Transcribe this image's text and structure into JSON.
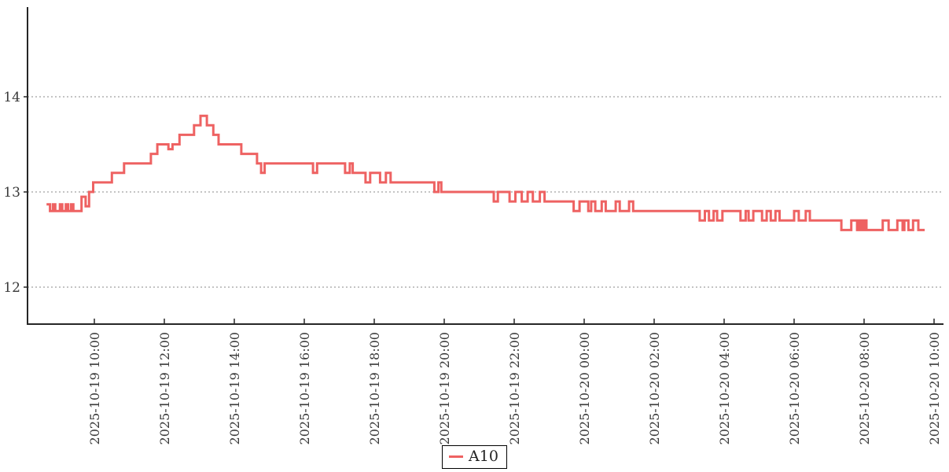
{
  "chart_data": {
    "type": "line",
    "step": "step-after",
    "title": "",
    "xlabel": "",
    "ylabel": "",
    "grid": "horizontal-dotted",
    "legend_position": "bottom-center",
    "x_unit": "minutes since 2025-10-19 00:00",
    "xlim_minutes": [
      485,
      2055
    ],
    "ylim": [
      11.6,
      14.95
    ],
    "y_ticks": [
      12,
      13,
      14
    ],
    "x_ticks": {
      "t_minutes": [
        600,
        720,
        840,
        960,
        1080,
        1200,
        1320,
        1440,
        1560,
        1680,
        1800,
        1920,
        2040
      ],
      "labels": [
        "2025-10-19 10:00",
        "2025-10-19 12:00",
        "2025-10-19 14:00",
        "2025-10-19 16:00",
        "2025-10-19 18:00",
        "2025-10-19 20:00",
        "2025-10-19 22:00",
        "2025-10-20 00:00",
        "2025-10-20 02:00",
        "2025-10-20 04:00",
        "2025-10-20 06:00",
        "2025-10-20 08:00",
        "2025-10-20 10:00"
      ]
    },
    "series": [
      {
        "name": "A10",
        "color": "#ee6262",
        "points": [
          [
            518,
            12.87
          ],
          [
            524,
            12.8
          ],
          [
            529,
            12.87
          ],
          [
            533,
            12.8
          ],
          [
            541,
            12.87
          ],
          [
            545,
            12.8
          ],
          [
            551,
            12.87
          ],
          [
            555,
            12.8
          ],
          [
            560,
            12.87
          ],
          [
            564,
            12.8
          ],
          [
            578,
            12.95
          ],
          [
            585,
            12.85
          ],
          [
            591,
            13.0
          ],
          [
            598,
            13.1
          ],
          [
            630,
            13.2
          ],
          [
            651,
            13.3
          ],
          [
            697,
            13.4
          ],
          [
            708,
            13.5
          ],
          [
            727,
            13.45
          ],
          [
            734,
            13.5
          ],
          [
            746,
            13.6
          ],
          [
            771,
            13.7
          ],
          [
            782,
            13.8
          ],
          [
            793,
            13.7
          ],
          [
            804,
            13.6
          ],
          [
            813,
            13.5
          ],
          [
            852,
            13.4
          ],
          [
            879,
            13.3
          ],
          [
            886,
            13.2
          ],
          [
            892,
            13.3
          ],
          [
            975,
            13.2
          ],
          [
            982,
            13.3
          ],
          [
            1030,
            13.2
          ],
          [
            1038,
            13.3
          ],
          [
            1043,
            13.2
          ],
          [
            1065,
            13.1
          ],
          [
            1073,
            13.2
          ],
          [
            1090,
            13.1
          ],
          [
            1100,
            13.2
          ],
          [
            1108,
            13.1
          ],
          [
            1183,
            13.0
          ],
          [
            1190,
            13.1
          ],
          [
            1195,
            13.0
          ],
          [
            1285,
            12.9
          ],
          [
            1292,
            13.0
          ],
          [
            1312,
            12.9
          ],
          [
            1322,
            13.0
          ],
          [
            1333,
            12.9
          ],
          [
            1343,
            13.0
          ],
          [
            1352,
            12.9
          ],
          [
            1364,
            13.0
          ],
          [
            1372,
            12.9
          ],
          [
            1422,
            12.8
          ],
          [
            1432,
            12.9
          ],
          [
            1447,
            12.8
          ],
          [
            1452,
            12.9
          ],
          [
            1459,
            12.8
          ],
          [
            1470,
            12.9
          ],
          [
            1477,
            12.8
          ],
          [
            1494,
            12.9
          ],
          [
            1501,
            12.8
          ],
          [
            1517,
            12.9
          ],
          [
            1524,
            12.8
          ],
          [
            1638,
            12.7
          ],
          [
            1647,
            12.8
          ],
          [
            1654,
            12.7
          ],
          [
            1662,
            12.8
          ],
          [
            1668,
            12.7
          ],
          [
            1677,
            12.8
          ],
          [
            1708,
            12.7
          ],
          [
            1717,
            12.8
          ],
          [
            1722,
            12.7
          ],
          [
            1730,
            12.8
          ],
          [
            1745,
            12.7
          ],
          [
            1753,
            12.8
          ],
          [
            1760,
            12.7
          ],
          [
            1768,
            12.8
          ],
          [
            1775,
            12.7
          ],
          [
            1800,
            12.8
          ],
          [
            1808,
            12.7
          ],
          [
            1820,
            12.8
          ],
          [
            1827,
            12.7
          ],
          [
            1881,
            12.6
          ],
          [
            1898,
            12.7
          ],
          [
            1908,
            12.6
          ],
          [
            1912,
            12.7
          ],
          [
            1916,
            12.6
          ],
          [
            1920,
            12.7
          ],
          [
            1924,
            12.6
          ],
          [
            1952,
            12.7
          ],
          [
            1962,
            12.6
          ],
          [
            1977,
            12.7
          ],
          [
            1986,
            12.6
          ],
          [
            1989,
            12.7
          ],
          [
            1996,
            12.6
          ],
          [
            2004,
            12.7
          ],
          [
            2013,
            12.6
          ],
          [
            2024,
            12.6
          ]
        ]
      }
    ]
  },
  "legend": {
    "label": "A10"
  },
  "colors": {
    "line": "#ee6262",
    "axis": "#262626",
    "grid": "#8a8a8a",
    "tick_text": "#3a3a3a",
    "background": "#ffffff"
  }
}
